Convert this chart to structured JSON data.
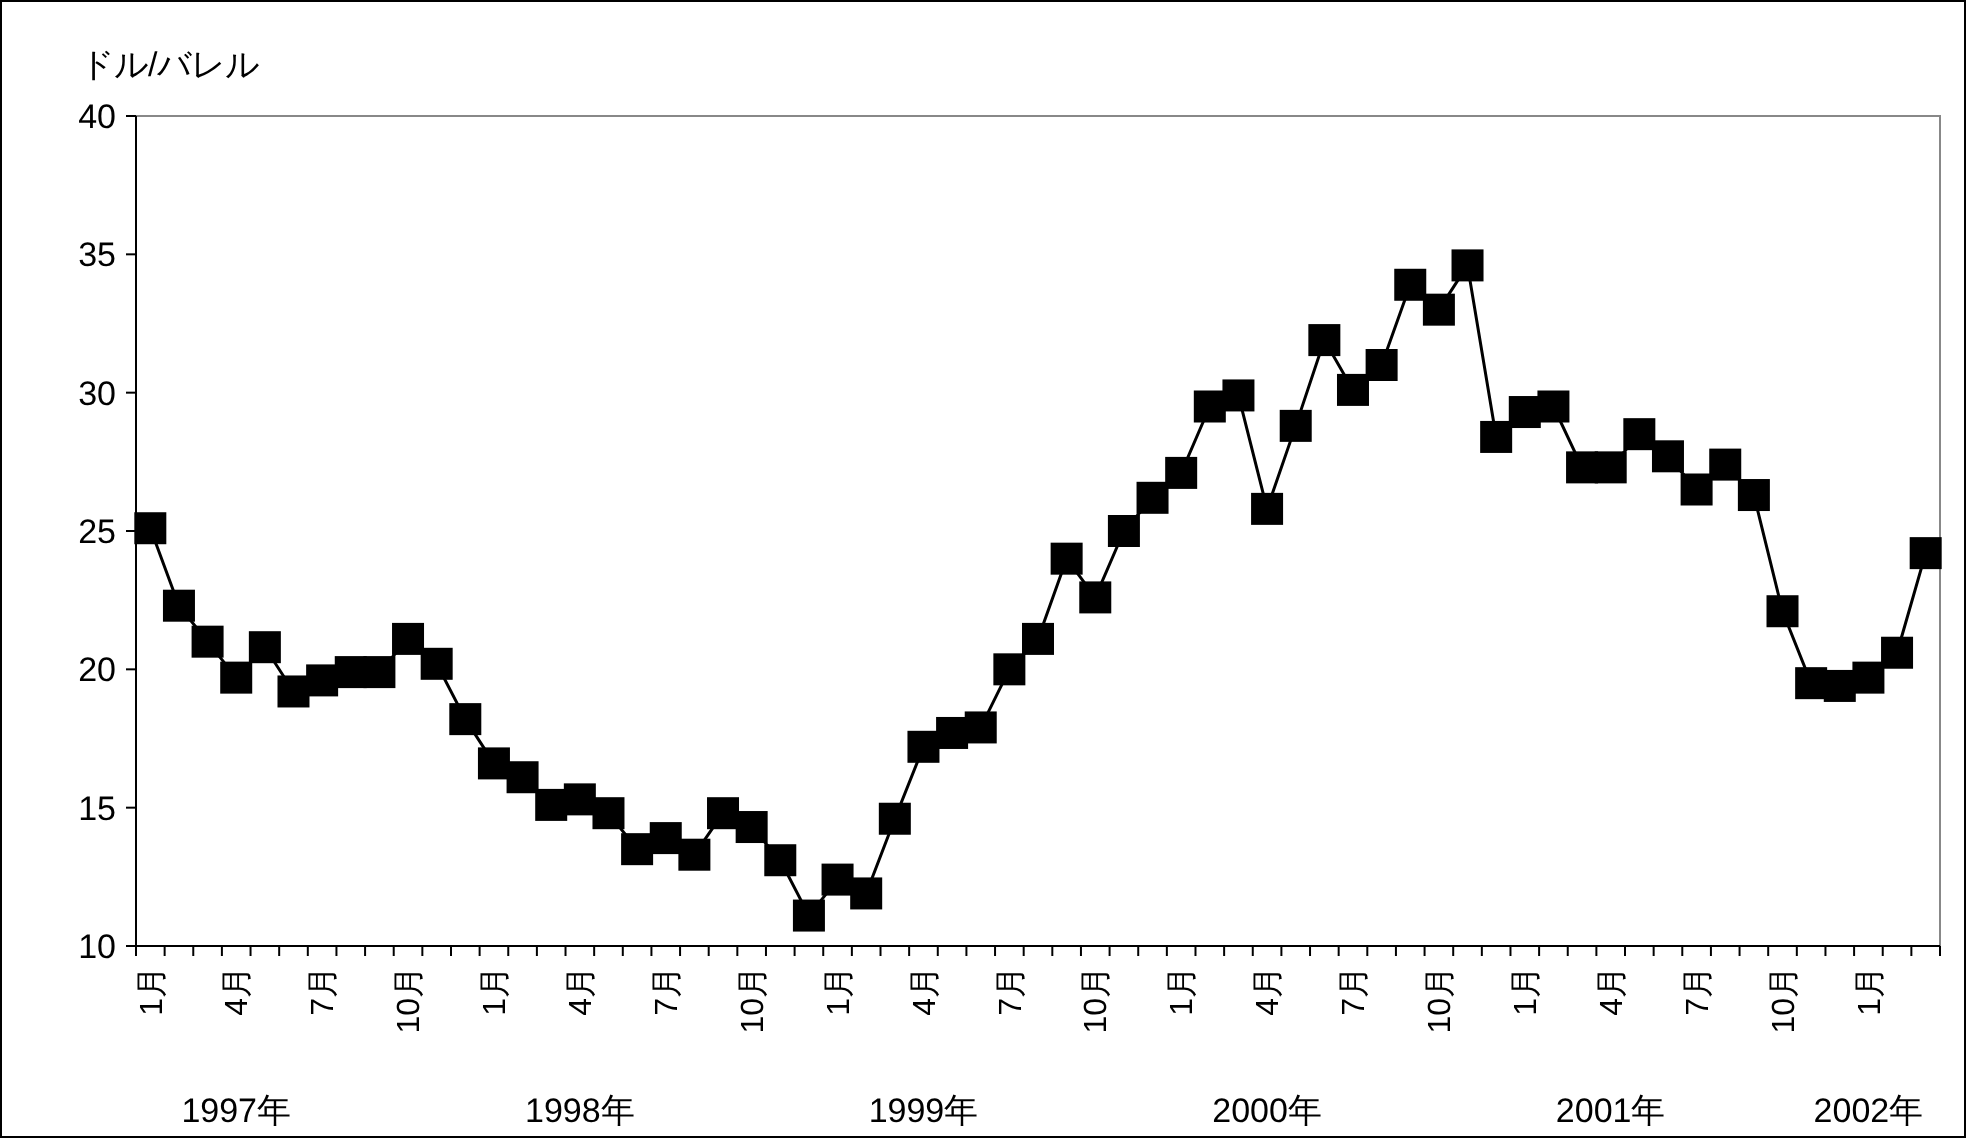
{
  "chart_data": {
    "type": "line",
    "ylabel": "ドル/バレル",
    "categories": [
      "1月",
      null,
      null,
      "4月",
      null,
      null,
      "7月",
      null,
      null,
      "10月",
      null,
      null,
      "1月",
      null,
      null,
      "4月",
      null,
      null,
      "7月",
      null,
      null,
      "10月",
      null,
      null,
      "1月",
      null,
      null,
      "4月",
      null,
      null,
      "7月",
      null,
      null,
      "10月",
      null,
      null,
      "1月",
      null,
      null,
      "4月",
      null,
      null,
      "7月",
      null,
      null,
      "10月",
      null,
      null,
      "1月",
      null,
      null,
      "4月",
      null,
      null,
      "7月",
      null,
      null,
      "10月",
      null,
      null,
      "1月",
      null,
      null
    ],
    "annotations": [
      "1997年",
      "1998年",
      "1999年",
      "2000年",
      "2001年",
      "2002年"
    ],
    "series": [
      {
        "color": "#000000",
        "values": [
          25.1,
          22.3,
          21.0,
          19.7,
          20.8,
          19.2,
          19.6,
          19.9,
          19.9,
          21.1,
          20.2,
          18.2,
          16.6,
          16.1,
          15.1,
          15.3,
          14.8,
          13.5,
          13.9,
          13.3,
          14.8,
          14.3,
          13.1,
          11.1,
          12.4,
          11.9,
          14.6,
          17.2,
          17.7,
          17.9,
          20.0,
          21.1,
          24.0,
          22.6,
          25.0,
          26.2,
          27.1,
          29.5,
          29.9,
          25.8,
          28.8,
          31.9,
          30.1,
          31.0,
          33.9,
          33.0,
          34.6,
          28.4,
          29.3,
          29.5,
          27.3,
          27.3,
          28.5,
          27.7,
          26.5,
          27.4,
          26.3,
          22.1,
          19.5,
          19.4,
          19.7,
          20.6,
          24.2
        ]
      }
    ],
    "ylim": [
      10,
      40
    ],
    "yticks": [
      10,
      15,
      20,
      25,
      30,
      35,
      40
    ],
    "grid": false,
    "marker": "square",
    "line_style": "solid"
  }
}
